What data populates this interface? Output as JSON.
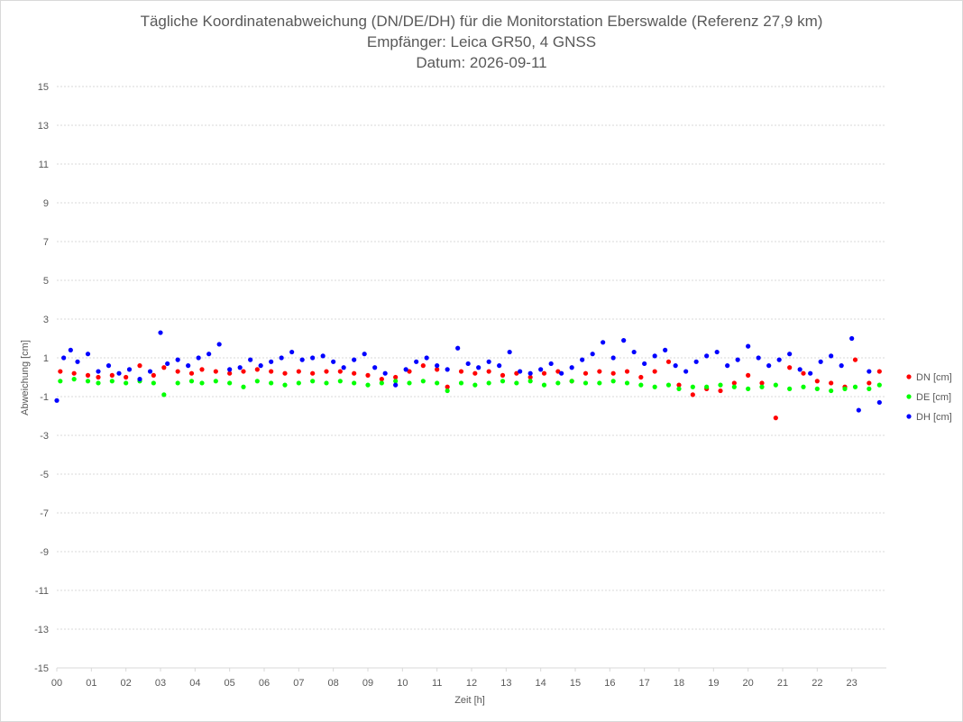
{
  "chart_data": {
    "type": "scatter",
    "title_lines": [
      "Tägliche Koordinatenabweichung (DN/DE/DH) für die Monitorstation Eberswalde (Referenz 27,9 km)",
      "Empfänger: Leica GR50, 4 GNSS",
      "Datum: 2026-09-11"
    ],
    "xlabel": "Zeit [h]",
    "ylabel": "Abweichung [cm]",
    "xlim": [
      0,
      24
    ],
    "ylim": [
      -15,
      15
    ],
    "x_tick_labels": [
      "00",
      "01",
      "02",
      "03",
      "04",
      "05",
      "06",
      "07",
      "08",
      "09",
      "10",
      "11",
      "12",
      "13",
      "14",
      "15",
      "16",
      "17",
      "18",
      "19",
      "20",
      "21",
      "22",
      "23"
    ],
    "y_ticks": [
      15,
      13,
      11,
      9,
      7,
      5,
      3,
      1,
      -1,
      -3,
      -5,
      -7,
      -9,
      -11,
      -13,
      -15
    ],
    "grid": true,
    "legend_position": "right",
    "series": [
      {
        "name": "DN [cm]",
        "color": "#ff0000",
        "points": [
          [
            0.1,
            0.3
          ],
          [
            0.5,
            0.2
          ],
          [
            0.9,
            0.1
          ],
          [
            1.2,
            0.0
          ],
          [
            1.6,
            0.1
          ],
          [
            2.0,
            0.0
          ],
          [
            2.4,
            0.6
          ],
          [
            2.8,
            0.1
          ],
          [
            3.1,
            0.5
          ],
          [
            3.5,
            0.3
          ],
          [
            3.9,
            0.2
          ],
          [
            4.2,
            0.4
          ],
          [
            4.6,
            0.3
          ],
          [
            5.0,
            0.2
          ],
          [
            5.4,
            0.3
          ],
          [
            5.8,
            0.4
          ],
          [
            6.2,
            0.3
          ],
          [
            6.6,
            0.2
          ],
          [
            7.0,
            0.3
          ],
          [
            7.4,
            0.2
          ],
          [
            7.8,
            0.3
          ],
          [
            8.2,
            0.3
          ],
          [
            8.6,
            0.2
          ],
          [
            9.0,
            0.1
          ],
          [
            9.4,
            -0.1
          ],
          [
            9.8,
            0.0
          ],
          [
            10.2,
            0.3
          ],
          [
            10.6,
            0.6
          ],
          [
            11.0,
            0.4
          ],
          [
            11.3,
            -0.5
          ],
          [
            11.7,
            0.3
          ],
          [
            12.1,
            0.2
          ],
          [
            12.5,
            0.3
          ],
          [
            12.9,
            0.1
          ],
          [
            13.3,
            0.2
          ],
          [
            13.7,
            0.0
          ],
          [
            14.1,
            0.2
          ],
          [
            14.5,
            0.3
          ],
          [
            14.9,
            -0.2
          ],
          [
            15.3,
            0.2
          ],
          [
            15.7,
            0.3
          ],
          [
            16.1,
            0.2
          ],
          [
            16.5,
            0.3
          ],
          [
            16.9,
            0.0
          ],
          [
            17.3,
            0.3
          ],
          [
            17.7,
            0.8
          ],
          [
            18.0,
            -0.4
          ],
          [
            18.4,
            -0.9
          ],
          [
            18.8,
            -0.6
          ],
          [
            19.2,
            -0.7
          ],
          [
            19.6,
            -0.3
          ],
          [
            20.0,
            0.1
          ],
          [
            20.4,
            -0.3
          ],
          [
            20.8,
            -2.1
          ],
          [
            21.2,
            0.5
          ],
          [
            21.6,
            0.2
          ],
          [
            22.0,
            -0.2
          ],
          [
            22.4,
            -0.3
          ],
          [
            22.8,
            -0.5
          ],
          [
            23.1,
            0.9
          ],
          [
            23.5,
            -0.3
          ],
          [
            23.8,
            0.3
          ]
        ]
      },
      {
        "name": "DE [cm]",
        "color": "#00ff00",
        "points": [
          [
            0.1,
            -0.2
          ],
          [
            0.5,
            -0.1
          ],
          [
            0.9,
            -0.2
          ],
          [
            1.2,
            -0.3
          ],
          [
            1.6,
            -0.2
          ],
          [
            2.0,
            -0.3
          ],
          [
            2.4,
            -0.2
          ],
          [
            2.8,
            -0.3
          ],
          [
            3.1,
            -0.9
          ],
          [
            3.5,
            -0.3
          ],
          [
            3.9,
            -0.2
          ],
          [
            4.2,
            -0.3
          ],
          [
            4.6,
            -0.2
          ],
          [
            5.0,
            -0.3
          ],
          [
            5.4,
            -0.5
          ],
          [
            5.8,
            -0.2
          ],
          [
            6.2,
            -0.3
          ],
          [
            6.6,
            -0.4
          ],
          [
            7.0,
            -0.3
          ],
          [
            7.4,
            -0.2
          ],
          [
            7.8,
            -0.3
          ],
          [
            8.2,
            -0.2
          ],
          [
            8.6,
            -0.3
          ],
          [
            9.0,
            -0.4
          ],
          [
            9.4,
            -0.3
          ],
          [
            9.8,
            -0.2
          ],
          [
            10.2,
            -0.3
          ],
          [
            10.6,
            -0.2
          ],
          [
            11.0,
            -0.3
          ],
          [
            11.3,
            -0.7
          ],
          [
            11.7,
            -0.3
          ],
          [
            12.1,
            -0.4
          ],
          [
            12.5,
            -0.3
          ],
          [
            12.9,
            -0.2
          ],
          [
            13.3,
            -0.3
          ],
          [
            13.7,
            -0.2
          ],
          [
            14.1,
            -0.4
          ],
          [
            14.5,
            -0.3
          ],
          [
            14.9,
            -0.2
          ],
          [
            15.3,
            -0.3
          ],
          [
            15.7,
            -0.3
          ],
          [
            16.1,
            -0.2
          ],
          [
            16.5,
            -0.3
          ],
          [
            16.9,
            -0.4
          ],
          [
            17.3,
            -0.5
          ],
          [
            17.7,
            -0.4
          ],
          [
            18.0,
            -0.6
          ],
          [
            18.4,
            -0.5
          ],
          [
            18.8,
            -0.5
          ],
          [
            19.2,
            -0.4
          ],
          [
            19.6,
            -0.5
          ],
          [
            20.0,
            -0.6
          ],
          [
            20.4,
            -0.5
          ],
          [
            20.8,
            -0.4
          ],
          [
            21.2,
            -0.6
          ],
          [
            21.6,
            -0.5
          ],
          [
            22.0,
            -0.6
          ],
          [
            22.4,
            -0.7
          ],
          [
            22.8,
            -0.6
          ],
          [
            23.1,
            -0.5
          ],
          [
            23.5,
            -0.6
          ],
          [
            23.8,
            -0.4
          ]
        ]
      },
      {
        "name": "DH [cm]",
        "color": "#0000ff",
        "points": [
          [
            0.0,
            -1.2
          ],
          [
            0.2,
            1.0
          ],
          [
            0.4,
            1.4
          ],
          [
            0.6,
            0.8
          ],
          [
            0.9,
            1.2
          ],
          [
            1.2,
            0.3
          ],
          [
            1.5,
            0.6
          ],
          [
            1.8,
            0.2
          ],
          [
            2.1,
            0.4
          ],
          [
            2.4,
            -0.1
          ],
          [
            2.7,
            0.3
          ],
          [
            3.0,
            2.3
          ],
          [
            3.2,
            0.7
          ],
          [
            3.5,
            0.9
          ],
          [
            3.8,
            0.6
          ],
          [
            4.1,
            1.0
          ],
          [
            4.4,
            1.2
          ],
          [
            4.7,
            1.7
          ],
          [
            5.0,
            0.4
          ],
          [
            5.3,
            0.5
          ],
          [
            5.6,
            0.9
          ],
          [
            5.9,
            0.6
          ],
          [
            6.2,
            0.8
          ],
          [
            6.5,
            1.0
          ],
          [
            6.8,
            1.3
          ],
          [
            7.1,
            0.9
          ],
          [
            7.4,
            1.0
          ],
          [
            7.7,
            1.1
          ],
          [
            8.0,
            0.8
          ],
          [
            8.3,
            0.5
          ],
          [
            8.6,
            0.9
          ],
          [
            8.9,
            1.2
          ],
          [
            9.2,
            0.5
          ],
          [
            9.5,
            0.2
          ],
          [
            9.8,
            -0.4
          ],
          [
            10.1,
            0.4
          ],
          [
            10.4,
            0.8
          ],
          [
            10.7,
            1.0
          ],
          [
            11.0,
            0.6
          ],
          [
            11.3,
            0.4
          ],
          [
            11.6,
            1.5
          ],
          [
            11.9,
            0.7
          ],
          [
            12.2,
            0.5
          ],
          [
            12.5,
            0.8
          ],
          [
            12.8,
            0.6
          ],
          [
            13.1,
            1.3
          ],
          [
            13.4,
            0.3
          ],
          [
            13.7,
            0.2
          ],
          [
            14.0,
            0.4
          ],
          [
            14.3,
            0.7
          ],
          [
            14.6,
            0.2
          ],
          [
            14.9,
            0.5
          ],
          [
            15.2,
            0.9
          ],
          [
            15.5,
            1.2
          ],
          [
            15.8,
            1.8
          ],
          [
            16.1,
            1.0
          ],
          [
            16.4,
            1.9
          ],
          [
            16.7,
            1.3
          ],
          [
            17.0,
            0.7
          ],
          [
            17.3,
            1.1
          ],
          [
            17.6,
            1.4
          ],
          [
            17.9,
            0.6
          ],
          [
            18.2,
            0.3
          ],
          [
            18.5,
            0.8
          ],
          [
            18.8,
            1.1
          ],
          [
            19.1,
            1.3
          ],
          [
            19.4,
            0.6
          ],
          [
            19.7,
            0.9
          ],
          [
            20.0,
            1.6
          ],
          [
            20.3,
            1.0
          ],
          [
            20.6,
            0.6
          ],
          [
            20.9,
            0.9
          ],
          [
            21.2,
            1.2
          ],
          [
            21.5,
            0.4
          ],
          [
            21.8,
            0.2
          ],
          [
            22.1,
            0.8
          ],
          [
            22.4,
            1.1
          ],
          [
            22.7,
            0.6
          ],
          [
            23.0,
            2.0
          ],
          [
            23.2,
            -1.7
          ],
          [
            23.5,
            0.3
          ],
          [
            23.8,
            -1.3
          ]
        ]
      }
    ]
  }
}
